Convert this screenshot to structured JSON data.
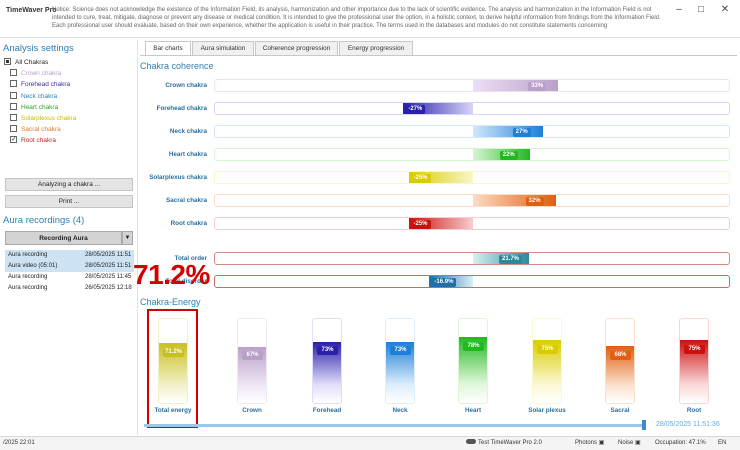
{
  "window": {
    "app_title": "TimeWaver Pro",
    "notice": "Notice: Science does not acknowledge the existence of the Information Field, its analysis, harmonization and other importance due to the lack of scientific evidence. The analysis and harmonization in the Information Field is not intended to cure, treat, mitigate, diagnose or prevent any disease or medical condition. It is intended to give the professional user the option, in a holistic context, to derive helpful information from findings from the Information Field. Each professional user should evaluate, based on their own experience, whether the application is useful in their practice. The terms used in the databases and modules do not constitute statements concerning",
    "controls": {
      "minimize": "–",
      "maximize": "□",
      "close": "✕"
    }
  },
  "left": {
    "analysis_title": "Analysis settings",
    "chakras": [
      {
        "label": "All Chakras",
        "color": "#222222",
        "state": "filled"
      },
      {
        "label": "Crown chakra",
        "color": "#b9a0c8",
        "state": "empty"
      },
      {
        "label": "Forehead chakra",
        "color": "#3a2fa0",
        "state": "empty"
      },
      {
        "label": "Neck chakra",
        "color": "#2f7fb3",
        "state": "empty"
      },
      {
        "label": "Heart chakra",
        "color": "#2ea02e",
        "state": "empty"
      },
      {
        "label": "Solarplexus chakra",
        "color": "#c9b800",
        "state": "empty"
      },
      {
        "label": "Sacral chakra",
        "color": "#e07a20",
        "state": "empty"
      },
      {
        "label": "Root chakra",
        "color": "#cc2222",
        "state": "checked"
      }
    ],
    "analyze_button": "Analyzing a chakra ...",
    "print_button": "Print ...",
    "recordings_title": "Aura recordings (4)",
    "recording_button": "Recording Aura",
    "recordings": [
      {
        "name": "Aura recording",
        "date": "28/05/2025 11:51",
        "selected": true
      },
      {
        "name": "Aura video (05:01)",
        "date": "28/05/2025 11:51",
        "selected": true
      },
      {
        "name": "Aura recording",
        "date": "28/05/2025 11:45",
        "selected": false
      },
      {
        "name": "Aura recording",
        "date": "26/05/2025 12:18",
        "selected": false
      }
    ]
  },
  "tabs": [
    "Bar charts",
    "Aura simulation",
    "Coherence progression",
    "Energy progression"
  ],
  "coherence": {
    "title": "Chakra coherence",
    "rows": [
      {
        "label": "Crown chakra",
        "value": 33,
        "text": "33%",
        "color": "#b9a0c8",
        "light": "#ecdff5"
      },
      {
        "label": "Forehead chakra",
        "value": -27,
        "text": "-27%",
        "color": "#2a1fa8",
        "light": "#d8d4f7"
      },
      {
        "label": "Neck chakra",
        "value": 27,
        "text": "27%",
        "color": "#1e7fd8",
        "light": "#d2e8fb"
      },
      {
        "label": "Heart chakra",
        "value": 22,
        "text": "22%",
        "color": "#22b822",
        "light": "#d8f5d2"
      },
      {
        "label": "Solarplexus chakra",
        "value": -25,
        "text": "-25%",
        "color": "#d8cc00",
        "light": "#faf6c8"
      },
      {
        "label": "Sacral chakra",
        "value": 32,
        "text": "32%",
        "color": "#e05f10",
        "light": "#fbdcc4"
      },
      {
        "label": "Root chakra",
        "value": -25,
        "text": "-25%",
        "color": "#cc1010",
        "light": "#f8cccc"
      }
    ],
    "totals": [
      {
        "label": "Total order",
        "value": 21.7,
        "text": "21.7%",
        "color": "#2a8a9c",
        "light": "#d6f2f0"
      },
      {
        "label": "Total disorder",
        "value": -16.9,
        "text": "-16.9%",
        "color": "#1e6fa8",
        "light": "#d8eef6"
      }
    ]
  },
  "energy": {
    "title": "Chakra-Energy",
    "columns": [
      {
        "label": "Total energy",
        "value": 71.2,
        "text": "71.2%",
        "color": "#c8c020",
        "light": "#f2f0c8"
      },
      {
        "label": "Crown",
        "value": 67,
        "text": "67%",
        "color": "#b9a0c8",
        "light": "#f0e8f6"
      },
      {
        "label": "Forehead",
        "value": 73,
        "text": "73%",
        "color": "#2a1fa8",
        "light": "#e2defa"
      },
      {
        "label": "Neck",
        "value": 73,
        "text": "73%",
        "color": "#1e7fd8",
        "light": "#dceefb"
      },
      {
        "label": "Heart",
        "value": 78,
        "text": "78%",
        "color": "#22b822",
        "light": "#def6d8"
      },
      {
        "label": "Solar plexus",
        "value": 75,
        "text": "75%",
        "color": "#d8cc00",
        "light": "#fbf8d2"
      },
      {
        "label": "Sacral",
        "value": 68,
        "text": "68%",
        "color": "#e05f10",
        "light": "#fbe2d0"
      },
      {
        "label": "Root",
        "value": 75,
        "text": "75%",
        "color": "#cc1010",
        "light": "#f8d6d6"
      }
    ]
  },
  "overlay": {
    "big_value": "71.2%"
  },
  "timeline": {
    "date": "28/05/2025 11:51:36"
  },
  "status": {
    "left_date": "/2025 22:01",
    "test_label": "Test TimeWaver Pro 2.0",
    "photons": "Photons",
    "noise": "Noise",
    "occupation": "Occupation: 47.1%",
    "lang": "EN"
  }
}
